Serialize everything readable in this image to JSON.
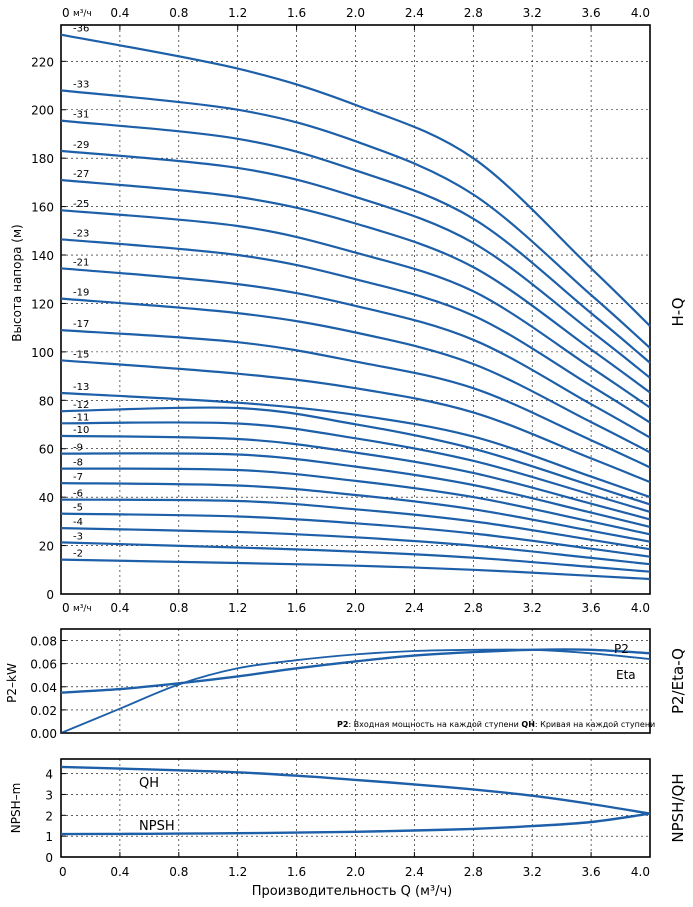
{
  "chart_data": [
    {
      "type": "line",
      "panel": "H-Q",
      "side_label": "H-Q",
      "ylabel": "Высота напора (м)",
      "x_unit_label": "м³/ч",
      "x_ticks": [
        "0",
        "0.4",
        "0.8",
        "1.2",
        "1.6",
        "2.0",
        "2.4",
        "2.8",
        "3.2",
        "3.6",
        "4.0"
      ],
      "y_ticks": [
        "0",
        "20",
        "40",
        "60",
        "80",
        "100",
        "120",
        "140",
        "160",
        "180",
        "200",
        "220"
      ],
      "xlim": [
        0,
        4.0
      ],
      "ylim": [
        0,
        235
      ],
      "grid": true,
      "x": [
        0,
        1.2,
        2.0,
        2.8,
        3.6,
        4.0
      ],
      "series": [
        {
          "name": "-2",
          "values": [
            14.2,
            12.8,
            11.7,
            10.0,
            7.5,
            6.2
          ]
        },
        {
          "name": "-3",
          "values": [
            21.3,
            19.2,
            17.5,
            15.0,
            11.2,
            9.2
          ]
        },
        {
          "name": "-4",
          "values": [
            27.2,
            25.6,
            23.4,
            20.0,
            14.9,
            12.3
          ]
        },
        {
          "name": "-5",
          "values": [
            33.2,
            32.0,
            29.2,
            25.0,
            18.7,
            15.4
          ]
        },
        {
          "name": "-6",
          "values": [
            39.0,
            38.4,
            35.0,
            30.0,
            22.4,
            18.5
          ]
        },
        {
          "name": "-7",
          "values": [
            45.8,
            44.8,
            40.9,
            35.0,
            26.1,
            21.6
          ]
        },
        {
          "name": "-8",
          "values": [
            51.8,
            51.2,
            46.7,
            40.0,
            29.9,
            24.6
          ]
        },
        {
          "name": "-9",
          "values": [
            58.0,
            57.6,
            52.6,
            45.0,
            33.6,
            27.7
          ]
        },
        {
          "name": "-10",
          "values": [
            65.3,
            64.0,
            58.4,
            50.0,
            37.3,
            30.8
          ]
        },
        {
          "name": "-11",
          "values": [
            70.5,
            70.4,
            64.3,
            55.0,
            41.1,
            33.9
          ]
        },
        {
          "name": "-12",
          "values": [
            75.5,
            76.8,
            70.1,
            60.0,
            44.8,
            37.0
          ]
        },
        {
          "name": "-13",
          "values": [
            83.0,
            79.0,
            74.0,
            65.0,
            48.5,
            40.0
          ]
        },
        {
          "name": "-15",
          "values": [
            96.5,
            91.0,
            85.0,
            75.0,
            56.0,
            46.2
          ]
        },
        {
          "name": "-17",
          "values": [
            109.0,
            104.0,
            96.0,
            85.0,
            63.5,
            52.3
          ]
        },
        {
          "name": "-19",
          "values": [
            122.0,
            116.0,
            108.0,
            95.0,
            71.0,
            58.5
          ]
        },
        {
          "name": "-21",
          "values": [
            134.5,
            128.0,
            119.0,
            105.0,
            78.4,
            64.6
          ]
        },
        {
          "name": "-23",
          "values": [
            146.5,
            140.0,
            130.0,
            115.0,
            86.0,
            70.8
          ]
        },
        {
          "name": "-25",
          "values": [
            158.5,
            152.0,
            141.0,
            125.0,
            93.5,
            77.0
          ]
        },
        {
          "name": "-27",
          "values": [
            171.0,
            164.0,
            153.0,
            135.0,
            101.0,
            83.2
          ]
        },
        {
          "name": "-29",
          "values": [
            183.0,
            176.0,
            164.0,
            145.0,
            108.5,
            89.3
          ]
        },
        {
          "name": "-31",
          "values": [
            195.5,
            188.0,
            175.0,
            155.0,
            116.0,
            95.5
          ]
        },
        {
          "name": "-33",
          "values": [
            208.0,
            200.0,
            187.0,
            165.0,
            123.5,
            101.6
          ]
        },
        {
          "name": "-36",
          "values": [
            231.0,
            217.0,
            202.0,
            180.0,
            134.5,
            110.7
          ]
        }
      ]
    },
    {
      "type": "line",
      "panel": "P2/Eta-Q",
      "side_label": "P2/Eta-Q",
      "ylabel": "P2–kW",
      "x_unit_label": "м³/ч",
      "y_ticks": [
        "0.00",
        "0.02",
        "0.04",
        "0.06",
        "0.08"
      ],
      "xlim": [
        0,
        4.0
      ],
      "ylim": [
        0,
        0.09
      ],
      "grid": true,
      "x": [
        0,
        0.4,
        0.8,
        1.2,
        1.6,
        2.0,
        2.4,
        2.8,
        3.2,
        3.6,
        4.0
      ],
      "series": [
        {
          "name": "P2",
          "values": [
            0.035,
            0.038,
            0.043,
            0.049,
            0.056,
            0.062,
            0.067,
            0.07,
            0.072,
            0.072,
            0.069
          ]
        },
        {
          "name": "Eta",
          "values": [
            0.0,
            0.021,
            0.042,
            0.056,
            0.063,
            0.068,
            0.071,
            0.072,
            0.072,
            0.069,
            0.064
          ]
        }
      ],
      "note_bold_1": "P2",
      "note_text_1": ": Входная мощность на каждой ступени ",
      "note_bold_2": "QH",
      "note_text_2": ": Кривая на каждой ступени"
    },
    {
      "type": "line",
      "panel": "NPSH/QH",
      "side_label": "NPSH/QH",
      "ylabel": "NPSH–m",
      "xlabel": "Производительность Q (м³/ч)",
      "x_ticks": [
        "0",
        "0.4",
        "0.8",
        "1.2",
        "1.6",
        "2.0",
        "2.4",
        "2.8",
        "3.2",
        "3.6",
        "4.0"
      ],
      "y_ticks": [
        "0",
        "1",
        "2",
        "3",
        "4"
      ],
      "xlim": [
        0,
        4.0
      ],
      "ylim": [
        0,
        4.7
      ],
      "grid": true,
      "x": [
        0,
        0.4,
        0.8,
        1.2,
        1.6,
        2.0,
        2.4,
        2.8,
        3.2,
        3.6,
        4.0
      ],
      "series": [
        {
          "name": "QH",
          "values": [
            4.32,
            4.24,
            4.16,
            4.06,
            3.9,
            3.7,
            3.48,
            3.24,
            2.94,
            2.54,
            2.08
          ]
        },
        {
          "name": "NPSH",
          "values": [
            1.1,
            1.11,
            1.12,
            1.14,
            1.17,
            1.21,
            1.27,
            1.35,
            1.48,
            1.68,
            2.08
          ]
        }
      ]
    }
  ]
}
